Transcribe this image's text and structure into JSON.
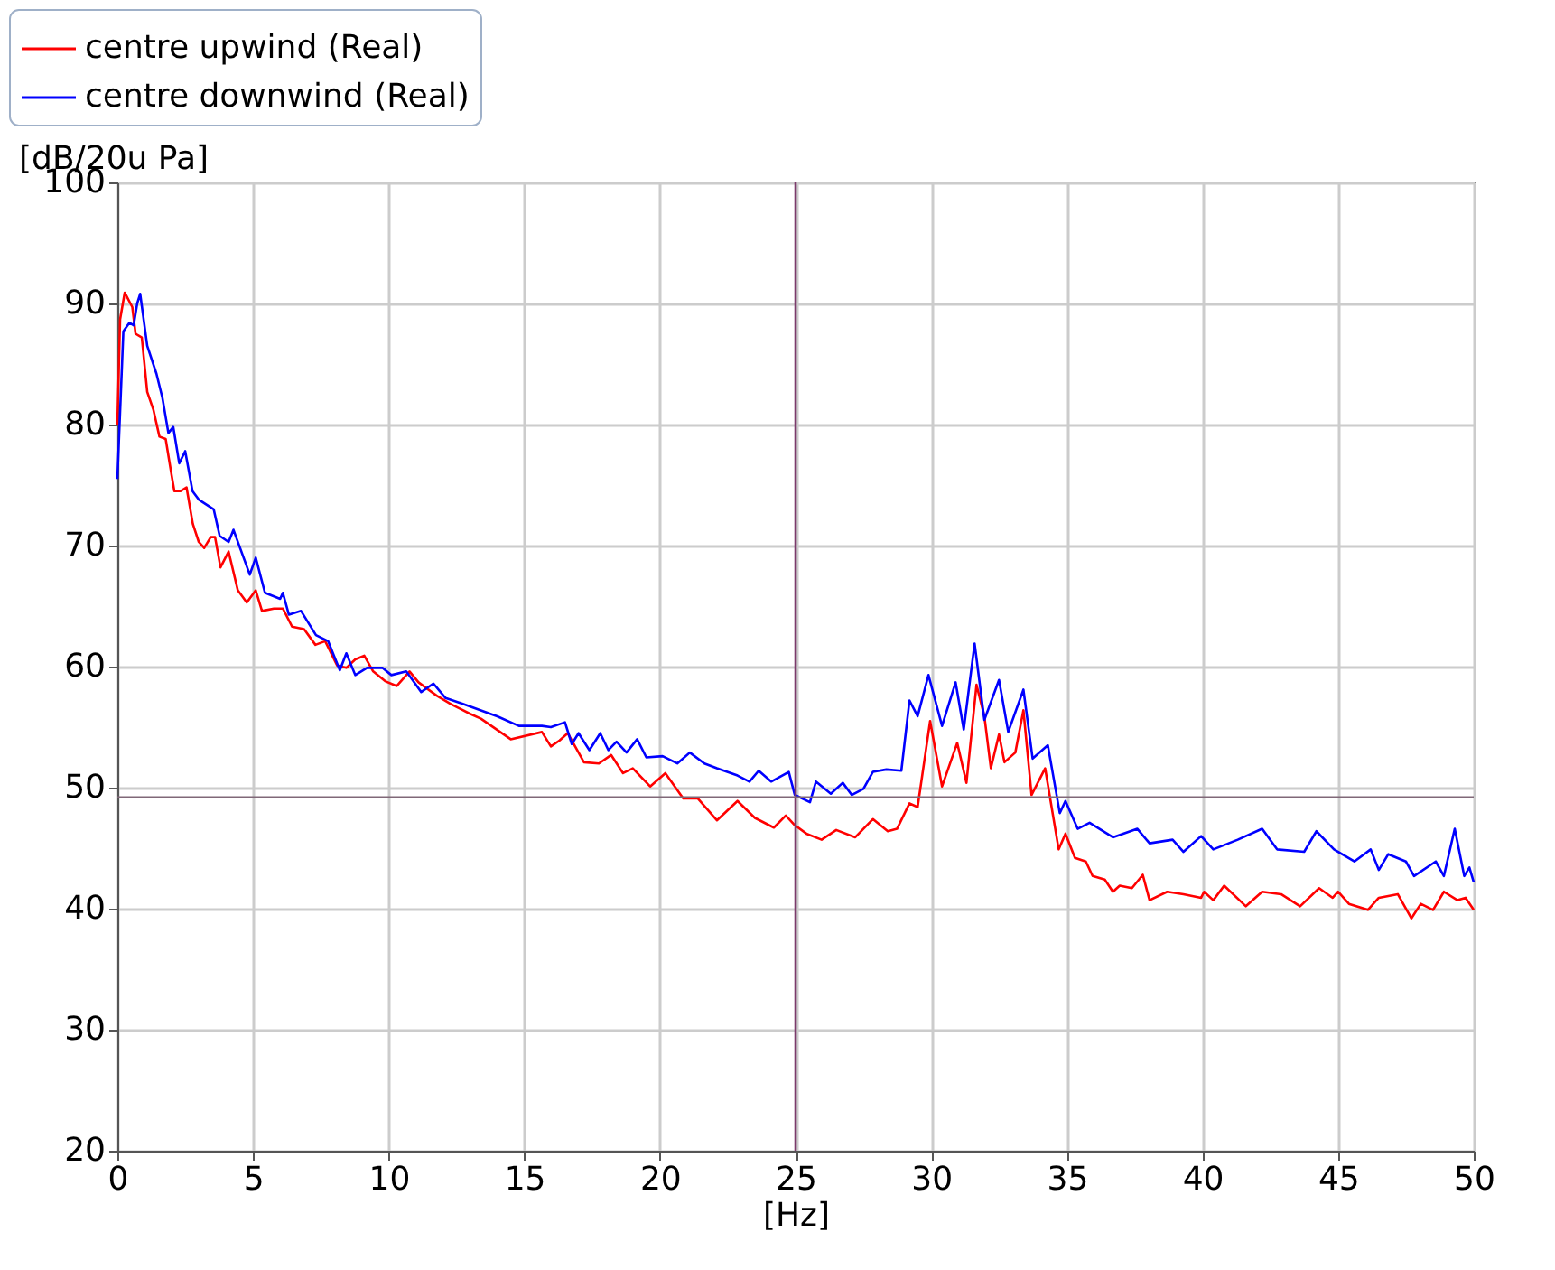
{
  "chart_data": {
    "type": "line",
    "xlabel": "[Hz]",
    "ylabel": "[dB/20u Pa]",
    "xlim": [
      0,
      50
    ],
    "xticks": [
      0,
      5,
      10,
      15,
      20,
      25,
      30,
      35,
      40,
      45,
      50
    ],
    "ylim": [
      20,
      100
    ],
    "yticks": [
      20,
      30,
      40,
      50,
      60,
      70,
      80,
      90,
      100
    ],
    "grid": true,
    "legend": "top",
    "marker": "none",
    "line_style": "solid",
    "ref_lines": [
      {
        "axis": "x",
        "value": 25,
        "color": "#7b3b6b"
      },
      {
        "axis": "y",
        "value": 49.2,
        "color": "#806878"
      }
    ],
    "series": [
      {
        "name": "centre upwind (Real)",
        "color": "#ff0000",
        "x": [
          0,
          0.1,
          0.27,
          0.55,
          0.67,
          0.9,
          1.1,
          1.33,
          1.55,
          1.78,
          2.0,
          2.1,
          2.33,
          2.55,
          2.78,
          3.0,
          3.2,
          3.44,
          3.6,
          3.8,
          4.1,
          4.44,
          4.77,
          5.1,
          5.33,
          5.77,
          6.1,
          6.44,
          6.88,
          7.3,
          7.66,
          8.1,
          8.44,
          8.77,
          9.1,
          9.43,
          9.87,
          10.3,
          10.77,
          11.1,
          11.77,
          12.3,
          13.0,
          13.4,
          14.5,
          15.65,
          15.98,
          16.3,
          16.6,
          17.2,
          17.75,
          18.2,
          18.64,
          19.0,
          19.64,
          20.2,
          20.86,
          21.4,
          22.1,
          22.86,
          23.5,
          24.2,
          24.64,
          24.97,
          25.4,
          25.96,
          26.5,
          27.2,
          27.85,
          28.4,
          28.74,
          29.2,
          29.5,
          29.96,
          30.4,
          30.96,
          31.3,
          31.67,
          31.96,
          32.2,
          32.5,
          32.7,
          33.1,
          33.4,
          33.7,
          34.2,
          34.7,
          34.95,
          35.3,
          35.7,
          35.95,
          36.4,
          36.7,
          36.95,
          37.4,
          37.8,
          38.05,
          38.7,
          39.3,
          39.95,
          40.06,
          40.4,
          40.8,
          41.6,
          42.2,
          42.9,
          43.6,
          44.3,
          44.8,
          45.0,
          45.4,
          46.1,
          46.5,
          47.2,
          47.7,
          48.05,
          48.5,
          48.9,
          49.4,
          49.7,
          50
        ],
        "values": [
          80,
          88.7,
          90.9,
          89.7,
          87.5,
          87.2,
          82.7,
          81.2,
          79,
          78.8,
          75.8,
          74.5,
          74.5,
          74.8,
          71.8,
          70.3,
          69.8,
          70.7,
          70.7,
          68.2,
          69.5,
          66.3,
          65.3,
          66.3,
          64.6,
          64.8,
          64.8,
          63.3,
          63.1,
          61.8,
          62.1,
          60.1,
          59.9,
          60.6,
          60.9,
          59.6,
          58.8,
          58.4,
          59.6,
          58.7,
          57.6,
          56.9,
          56.1,
          55.7,
          54.0,
          54.6,
          53.4,
          53.9,
          54.5,
          52.1,
          52.0,
          52.7,
          51.2,
          51.6,
          50.1,
          51.2,
          49.1,
          49.1,
          47.3,
          48.9,
          47.5,
          46.7,
          47.7,
          46.9,
          46.2,
          45.7,
          46.5,
          45.9,
          47.4,
          46.4,
          46.6,
          48.7,
          48.4,
          55.5,
          50.1,
          53.7,
          50.4,
          58.5,
          55.9,
          51.6,
          54.4,
          52.1,
          52.9,
          56.4,
          49.4,
          51.6,
          44.9,
          46.2,
          44.2,
          43.9,
          42.7,
          42.4,
          41.4,
          41.9,
          41.7,
          42.8,
          40.7,
          41.4,
          41.2,
          40.9,
          41.4,
          40.7,
          41.9,
          40.2,
          41.4,
          41.2,
          40.2,
          41.7,
          40.9,
          41.4,
          40.4,
          39.9,
          40.9,
          41.2,
          39.2,
          40.4,
          39.9,
          41.4,
          40.7,
          40.9,
          39.9
        ]
      },
      {
        "name": "centre downwind (Real)",
        "color": "#0000ff",
        "x": [
          0,
          0.22,
          0.44,
          0.6,
          0.73,
          0.84,
          1.1,
          1.44,
          1.66,
          1.88,
          2.06,
          2.28,
          2.5,
          2.77,
          3.0,
          3.55,
          3.77,
          4.1,
          4.28,
          4.88,
          5.1,
          5.44,
          6.0,
          6.1,
          6.32,
          6.77,
          7.32,
          7.77,
          8.2,
          8.44,
          8.77,
          9.2,
          9.77,
          10.1,
          10.65,
          11.2,
          11.65,
          12.1,
          12.76,
          14.0,
          14.8,
          15.65,
          15.98,
          16.5,
          16.75,
          17.0,
          17.4,
          17.8,
          18.1,
          18.4,
          18.77,
          19.16,
          19.5,
          20.1,
          20.64,
          21.1,
          21.64,
          22.1,
          22.86,
          23.3,
          23.64,
          24.1,
          24.75,
          24.97,
          25.53,
          25.75,
          26.3,
          26.74,
          27.07,
          27.5,
          27.85,
          28.35,
          28.9,
          29.2,
          29.5,
          29.9,
          30.4,
          30.9,
          31.2,
          31.6,
          31.96,
          32.5,
          32.84,
          33.4,
          33.74,
          34.3,
          34.74,
          34.95,
          35.4,
          35.84,
          36.7,
          37.6,
          38.05,
          38.9,
          39.3,
          39.95,
          40.4,
          41.3,
          42.2,
          42.75,
          43.75,
          44.2,
          44.85,
          45.6,
          46.2,
          46.5,
          46.85,
          47.5,
          47.8,
          48.6,
          48.9,
          49.3,
          49.65,
          49.84,
          50
        ],
        "values": [
          75.5,
          87.7,
          88.4,
          88.2,
          90,
          90.8,
          86.5,
          84.2,
          82.2,
          79.3,
          79.8,
          76.8,
          77.8,
          74.5,
          73.8,
          73.0,
          70.8,
          70.3,
          71.3,
          67.6,
          69.0,
          66.1,
          65.6,
          66.1,
          64.3,
          64.6,
          62.6,
          62.1,
          59.7,
          61.1,
          59.3,
          59.9,
          59.9,
          59.3,
          59.6,
          57.9,
          58.6,
          57.4,
          56.9,
          55.9,
          55.1,
          55.1,
          55.0,
          55.4,
          53.6,
          54.5,
          53.1,
          54.5,
          53.1,
          53.8,
          52.9,
          54.0,
          52.5,
          52.6,
          52.0,
          52.9,
          52.0,
          51.6,
          51.0,
          50.5,
          51.4,
          50.5,
          51.3,
          49.4,
          48.8,
          50.5,
          49.5,
          50.4,
          49.4,
          49.9,
          51.3,
          51.5,
          51.4,
          57.2,
          55.9,
          59.3,
          55.1,
          58.7,
          54.8,
          61.9,
          55.6,
          58.9,
          54.6,
          58.1,
          52.4,
          53.5,
          47.9,
          48.9,
          46.6,
          47.1,
          45.9,
          46.6,
          45.4,
          45.7,
          44.7,
          46.0,
          44.9,
          45.7,
          46.6,
          44.9,
          44.7,
          46.4,
          44.9,
          43.9,
          44.9,
          43.2,
          44.5,
          43.9,
          42.7,
          43.9,
          42.7,
          46.6,
          42.7,
          43.4,
          42.2
        ]
      }
    ]
  }
}
